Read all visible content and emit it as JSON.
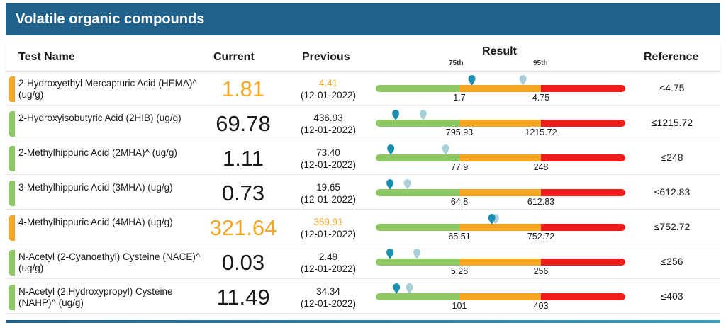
{
  "title": "Volatile organic compounds",
  "headers": {
    "test_name": "Test Name",
    "current": "Current",
    "previous": "Previous",
    "result": "Result",
    "p75": "75th",
    "p95": "95th",
    "reference": "Reference"
  },
  "colors": {
    "header_bg": "#21628c",
    "green": "#8dc863",
    "orange": "#f5a623",
    "red": "#f01c1c",
    "marker_current": "#1a8fb0",
    "marker_previous": "#a9cfd8",
    "flag_green": "#8dc863",
    "flag_orange": "#f5a623",
    "text_orange": "#f5a623"
  },
  "rows": [
    {
      "name": "2-Hydroxyethyl Mercapturic Acid (HEMA)^ (ug/g)",
      "current": "1.81",
      "previous": "4.41",
      "previous_date": "(12-01-2022)",
      "t75": "1.7",
      "t95": "4.75",
      "reference": "≤4.75",
      "status": "orange",
      "current_pos": 0.385,
      "previous_pos": 0.59
    },
    {
      "name": "2-Hydroxyisobutyric Acid (2HIB) (ug/g)",
      "current": "69.78",
      "previous": "436.93",
      "previous_date": "(12-01-2022)",
      "t75": "795.93",
      "t95": "1215.72",
      "reference": "≤1215.72",
      "status": "green",
      "current_pos": 0.08,
      "previous_pos": 0.19
    },
    {
      "name": "2-Methylhippuric Acid (2MHA)^ (ug/g)",
      "current": "1.11",
      "previous": "73.40",
      "previous_date": "(12-01-2022)",
      "t75": "77.9",
      "t95": "248",
      "reference": "≤248",
      "status": "green",
      "current_pos": 0.06,
      "previous_pos": 0.28
    },
    {
      "name": "3-Methylhippuric Acid (3MHA) (ug/g)",
      "current": "0.73",
      "previous": "19.65",
      "previous_date": "(12-01-2022)",
      "t75": "64.8",
      "t95": "612.83",
      "reference": "≤612.83",
      "status": "green",
      "current_pos": 0.057,
      "previous_pos": 0.127
    },
    {
      "name": "4-Methylhippuric Acid (4MHA) (ug/g)",
      "current": "321.64",
      "previous": "359.91",
      "previous_date": "(12-01-2022)",
      "t75": "65.51",
      "t95": "752.72",
      "reference": "≤752.72",
      "status": "orange",
      "current_pos": 0.465,
      "previous_pos": 0.48
    },
    {
      "name": "N-Acetyl (2-Cyanoethyl) Cysteine (NACE)^ (ug/g)",
      "current": "0.03",
      "previous": "2.49",
      "previous_date": "(12-01-2022)",
      "t75": "5.28",
      "t95": "256",
      "reference": "≤256",
      "status": "green",
      "current_pos": 0.057,
      "previous_pos": 0.165
    },
    {
      "name": "N-Acetyl (2,Hydroxypropyl) Cysteine (NAHP)^ (ug/g)",
      "current": "11.49",
      "previous": "34.34",
      "previous_date": "(12-01-2022)",
      "t75": "101",
      "t95": "403",
      "reference": "≤403",
      "status": "green",
      "current_pos": 0.083,
      "previous_pos": 0.135
    }
  ]
}
